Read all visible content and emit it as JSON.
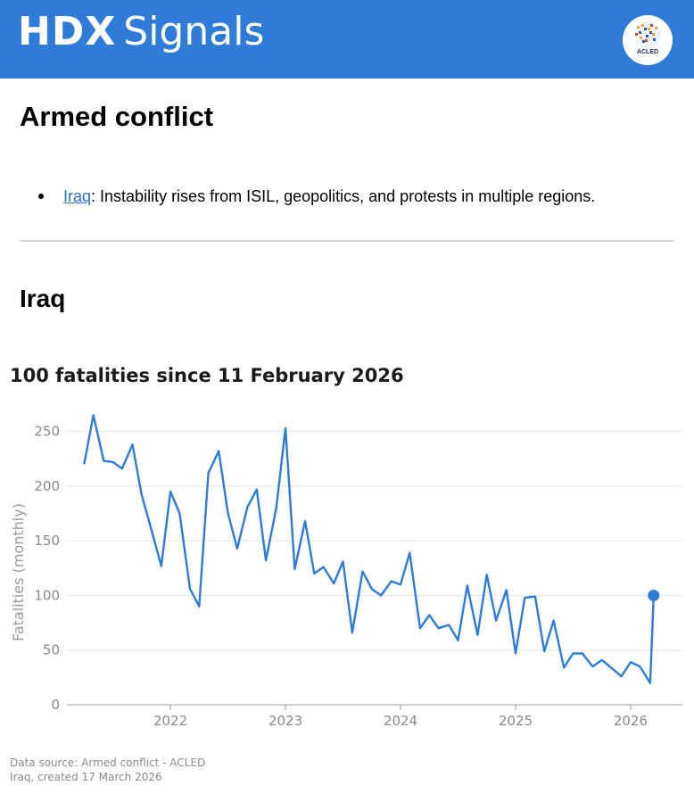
{
  "header": {
    "brand_bold": "HDX",
    "brand_light": "Signals",
    "logo_text": "ACLED",
    "bg_color": "#2f7bd8"
  },
  "section": {
    "title": "Armed conflict",
    "summary": {
      "country_link": "Iraq",
      "text": ": Instability rises from ISIL, geopolitics, and protests in multiple regions."
    }
  },
  "country": {
    "title": "Iraq"
  },
  "chart_data": {
    "type": "line",
    "title": "100 fatalities since 11 February 2026",
    "ylabel": "Fatalities (monthly)",
    "xlabel": "",
    "ylim": [
      0,
      275
    ],
    "yticks": [
      0,
      50,
      100,
      150,
      200,
      250
    ],
    "ytick_labels": [
      "0",
      "50",
      "100",
      "150",
      "200",
      "250"
    ],
    "xlim": [
      2021.1,
      2026.45
    ],
    "xticks": [
      2022,
      2023,
      2024,
      2025,
      2026
    ],
    "xtick_labels": [
      "2022",
      "2023",
      "2024",
      "2025",
      "2026"
    ],
    "grid": "horizontal",
    "color": "#2f7bd8",
    "series": [
      {
        "x": [
          2021.25,
          2021.33,
          2021.42,
          2021.5,
          2021.58,
          2021.67,
          2021.75,
          2021.83,
          2021.92,
          2022.0,
          2022.08,
          2022.17,
          2022.25,
          2022.33,
          2022.42,
          2022.5,
          2022.58,
          2022.67,
          2022.75,
          2022.83,
          2022.92,
          2023.0,
          2023.08,
          2023.17,
          2023.25,
          2023.33,
          2023.42,
          2023.5,
          2023.58,
          2023.67,
          2023.75,
          2023.83,
          2023.92,
          2024.0,
          2024.08,
          2024.17,
          2024.25,
          2024.33,
          2024.42,
          2024.5,
          2024.58,
          2024.67,
          2024.75,
          2024.83,
          2024.92,
          2025.0,
          2025.08,
          2025.17,
          2025.25,
          2025.33,
          2025.42,
          2025.5,
          2025.58,
          2025.67,
          2025.75,
          2025.83,
          2025.92,
          2026.0,
          2026.08,
          2026.17
        ],
        "values": [
          220,
          265,
          223,
          222,
          216,
          238,
          192,
          162,
          127,
          195,
          175,
          106,
          90,
          212,
          232,
          175,
          143,
          181,
          197,
          132,
          180,
          253,
          124,
          168,
          120,
          126,
          111,
          131,
          66,
          122,
          106,
          100,
          113,
          110,
          139,
          70,
          82,
          70,
          73,
          59,
          109,
          64,
          119,
          77,
          105,
          47,
          98,
          99,
          49,
          77,
          34,
          47,
          47,
          35,
          41,
          34,
          26,
          39,
          35,
          20
        ]
      }
    ],
    "highlight_point": {
      "x": 2026.2,
      "value": 100
    },
    "source_note": "Data source: Armed conflict - ACLED",
    "created_note": "Iraq, created 17 March 2026"
  }
}
